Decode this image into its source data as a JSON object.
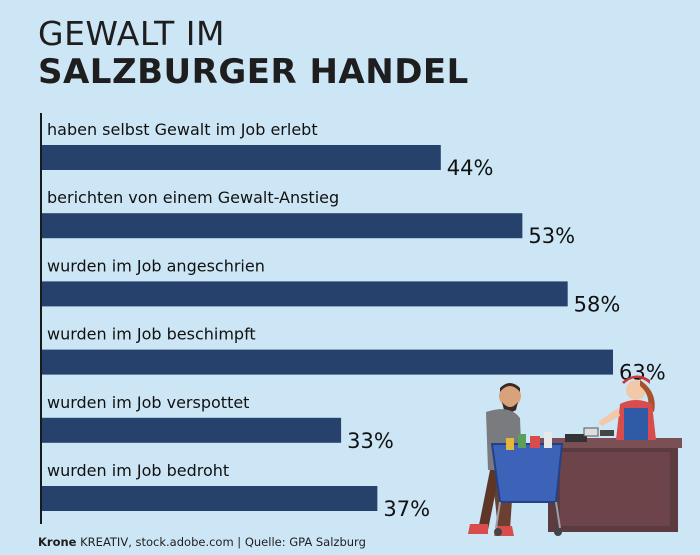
{
  "title": {
    "line1": "GEWALT IM",
    "line2": "SALZBURGER HANDEL"
  },
  "footer": {
    "brand": "Krone",
    "credit": "KREATIV, stock.adobe.com | Quelle: GPA Salzburg"
  },
  "colors": {
    "background": "#cde6f5",
    "bar": "#26416b",
    "axis": "#1a1a1a"
  },
  "chart_data": {
    "type": "bar",
    "orientation": "horizontal",
    "categories": [
      "haben selbst Gewalt im Job erlebt",
      "berichten von einem Gewalt-Anstieg",
      "wurden im Job angeschrien",
      "wurden im Job beschimpft",
      "wurden im Job verspottet",
      "wurden im Job bedroht"
    ],
    "values": [
      44,
      53,
      58,
      63,
      33,
      37
    ],
    "value_labels": [
      "44%",
      "53%",
      "58%",
      "63%",
      "33%",
      "37%"
    ],
    "unit": "%",
    "xlim": [
      0,
      63
    ],
    "grid": false,
    "legend": "none"
  },
  "illustration": {
    "description_icon": "shopping-scene-icon"
  }
}
